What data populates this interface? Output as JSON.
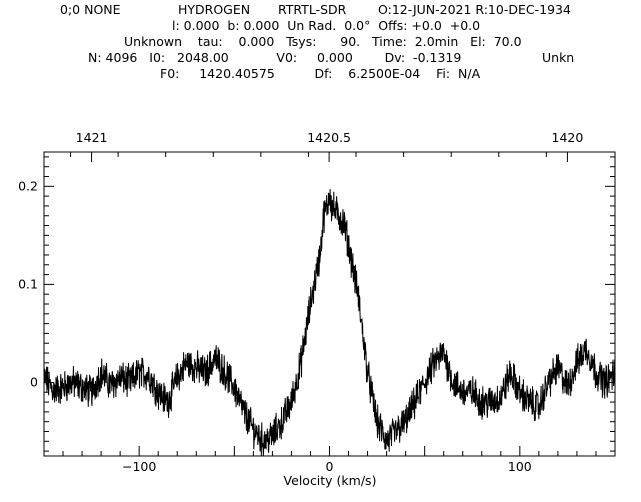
{
  "header": {
    "line1": {
      "source": "0;0 NONE",
      "line": "HYDROGEN",
      "telescope": "RTRTL-SDR",
      "obs_date": "O:12-JUN-2021 R:10-DEC-1934"
    },
    "line2": "l: 0.000  b: 0.000  Un Rad.  0.0°  Offs: +0.0  +0.0",
    "line3": "Unknown    tau:    0.000   Tsys:      90.   Time:  2.0min   El:  70.0",
    "line4": {
      "main": "N: 4096   I0:   2048.00            V0:     0.000        Dv:  -0.1319",
      "tail": "Unkn"
    },
    "line5": "F0:     1420.40575          Df:    6.2500E-04    Fi:  N/A"
  },
  "chart_data": {
    "type": "line",
    "xlabel": "Velocity (km/s)",
    "ylabel": "",
    "xlim": [
      -150,
      150
    ],
    "ylim": [
      -0.075,
      0.235
    ],
    "x_ticks": [
      -100,
      0,
      100
    ],
    "x_tick_labels": [
      "−100",
      "0",
      "100"
    ],
    "y_ticks": [
      0,
      0.1,
      0.2
    ],
    "y_tick_labels": [
      "0",
      "0.1",
      "0.2"
    ],
    "top_axis": {
      "label": "",
      "ticks": [
        1421,
        1420.5,
        1420
      ],
      "tick_labels": [
        "1421",
        "1420.5",
        "1420"
      ],
      "tick_velocity": [
        -125,
        -0.2,
        125
      ]
    },
    "grid": false,
    "legend": "none",
    "line_color": "#000000",
    "series": [
      {
        "name": "",
        "x": [
          -150,
          -145,
          -140,
          -135,
          -130,
          -125,
          -120,
          -115,
          -110,
          -105,
          -100,
          -95,
          -90,
          -85,
          -80,
          -75,
          -70,
          -65,
          -60,
          -55,
          -50,
          -45,
          -40,
          -35,
          -30,
          -25,
          -20,
          -15,
          -10,
          -5,
          -3,
          -1,
          0,
          1,
          3,
          5,
          8,
          10,
          15,
          20,
          25,
          30,
          35,
          40,
          45,
          50,
          55,
          60,
          65,
          70,
          75,
          80,
          85,
          90,
          95,
          100,
          105,
          110,
          115,
          120,
          125,
          130,
          135,
          140,
          145,
          150
        ],
        "y": [
          0.005,
          -0.008,
          -0.005,
          0.0,
          -0.005,
          -0.01,
          0.01,
          -0.003,
          0.005,
          0.0,
          0.01,
          0.008,
          -0.01,
          -0.02,
          0.005,
          0.02,
          0.015,
          0.01,
          0.025,
          0.01,
          -0.005,
          -0.03,
          -0.048,
          -0.06,
          -0.055,
          -0.04,
          -0.02,
          0.02,
          0.08,
          0.13,
          0.17,
          0.18,
          0.195,
          0.18,
          0.175,
          0.17,
          0.16,
          0.14,
          0.09,
          0.01,
          -0.04,
          -0.06,
          -0.05,
          -0.04,
          -0.02,
          0.0,
          0.02,
          0.03,
          0.0,
          -0.01,
          -0.01,
          -0.02,
          -0.02,
          -0.015,
          0.01,
          -0.01,
          -0.02,
          -0.025,
          0.0,
          0.015,
          -0.005,
          0.02,
          0.035,
          0.01,
          0.0,
          0.01
        ]
      }
    ]
  }
}
